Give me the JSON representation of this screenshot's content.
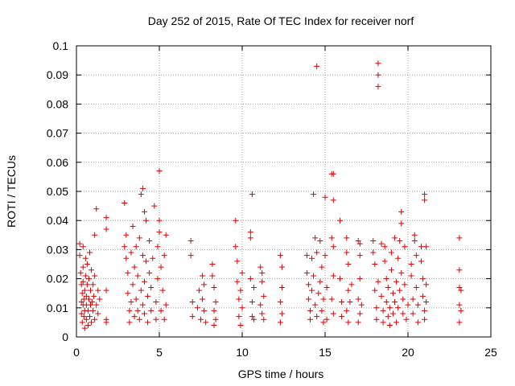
{
  "chart_data": {
    "type": "scatter",
    "title": "Day 252 of 2015, Rate Of TEC Index for receiver norf",
    "xlabel": "GPS time / hours",
    "ylabel": "ROTI / TECUs",
    "xlim": [
      0,
      25
    ],
    "ylim": [
      0,
      0.1
    ],
    "xticks": [
      "0",
      "5",
      "10",
      "15",
      "20",
      "25"
    ],
    "yticks": [
      "0",
      "0.01",
      "0.02",
      "0.03",
      "0.04",
      "0.05",
      "0.06",
      "0.07",
      "0.08",
      "0.09",
      "0.1"
    ],
    "grid": true,
    "marker": "plus",
    "color": "#e00000",
    "series": [
      {
        "points": [
          [
            0.2,
            0.032
          ],
          [
            0.2,
            0.028
          ],
          [
            0.25,
            0.022
          ],
          [
            0.3,
            0.018
          ],
          [
            0.3,
            0.012
          ],
          [
            0.3,
            0.008
          ],
          [
            0.35,
            0.015
          ],
          [
            0.35,
            0.005
          ],
          [
            0.4,
            0.031
          ],
          [
            0.4,
            0.024
          ],
          [
            0.4,
            0.019
          ],
          [
            0.4,
            0.011
          ],
          [
            0.45,
            0.007
          ],
          [
            0.45,
            0.013
          ],
          [
            0.5,
            0.009
          ],
          [
            0.5,
            0.016
          ],
          [
            0.5,
            0.003
          ],
          [
            0.55,
            0.021
          ],
          [
            0.55,
            0.027
          ],
          [
            0.6,
            0.011
          ],
          [
            0.6,
            0.006
          ],
          [
            0.6,
            0.014
          ],
          [
            0.65,
            0.018
          ],
          [
            0.65,
            0.025
          ],
          [
            0.7,
            0.009
          ],
          [
            0.7,
            0.004
          ],
          [
            0.75,
            0.013
          ],
          [
            0.75,
            0.02
          ],
          [
            0.8,
            0.029
          ],
          [
            0.8,
            0.007
          ],
          [
            0.85,
            0.016
          ],
          [
            0.85,
            0.011
          ],
          [
            0.9,
            0.023
          ],
          [
            0.9,
            0.005
          ],
          [
            0.95,
            0.012
          ],
          [
            1.0,
            0.018
          ],
          [
            1.0,
            0.009
          ],
          [
            1.05,
            0.014
          ],
          [
            1.1,
            0.021
          ],
          [
            1.1,
            0.006
          ],
          [
            1.1,
            0.035
          ],
          [
            1.2,
            0.044
          ],
          [
            1.2,
            0.011
          ],
          [
            1.3,
            0.016
          ],
          [
            1.3,
            0.008
          ],
          [
            1.4,
            0.013
          ],
          [
            1.8,
            0.041
          ],
          [
            1.8,
            0.037
          ],
          [
            1.8,
            0.016
          ],
          [
            1.8,
            0.006
          ],
          [
            1.8,
            0.005
          ],
          [
            2.9,
            0.046
          ],
          [
            2.9,
            0.031
          ],
          [
            3.0,
            0.035
          ],
          [
            3.0,
            0.027
          ],
          [
            3.1,
            0.022
          ],
          [
            3.1,
            0.015
          ],
          [
            3.2,
            0.009
          ],
          [
            3.2,
            0.005
          ],
          [
            3.3,
            0.029
          ],
          [
            3.3,
            0.012
          ],
          [
            3.4,
            0.038
          ],
          [
            3.4,
            0.018
          ],
          [
            3.5,
            0.007
          ],
          [
            3.5,
            0.024
          ],
          [
            3.6,
            0.031
          ],
          [
            3.6,
            0.013
          ],
          [
            3.7,
            0.009
          ],
          [
            3.7,
            0.021
          ],
          [
            3.8,
            0.034
          ],
          [
            3.8,
            0.006
          ],
          [
            3.9,
            0.049
          ],
          [
            3.9,
            0.016
          ],
          [
            4.0,
            0.051
          ],
          [
            4.0,
            0.028
          ],
          [
            4.0,
            0.011
          ],
          [
            4.1,
            0.043
          ],
          [
            4.1,
            0.019
          ],
          [
            4.1,
            0.008
          ],
          [
            4.2,
            0.04
          ],
          [
            4.2,
            0.026
          ],
          [
            4.3,
            0.014
          ],
          [
            4.3,
            0.005
          ],
          [
            4.4,
            0.033
          ],
          [
            4.4,
            0.022
          ],
          [
            4.5,
            0.017
          ],
          [
            4.5,
            0.009
          ],
          [
            4.6,
            0.027
          ],
          [
            4.7,
            0.045
          ],
          [
            4.8,
            0.012
          ],
          [
            4.8,
            0.006
          ],
          [
            4.9,
            0.031
          ],
          [
            4.9,
            0.02
          ],
          [
            5.0,
            0.057
          ],
          [
            5.0,
            0.04
          ],
          [
            5.0,
            0.036
          ],
          [
            5.1,
            0.024
          ],
          [
            5.1,
            0.009
          ],
          [
            5.2,
            0.016
          ],
          [
            5.3,
            0.028
          ],
          [
            5.3,
            0.006
          ],
          [
            5.4,
            0.035
          ],
          [
            5.4,
            0.011
          ],
          [
            6.9,
            0.033
          ],
          [
            6.9,
            0.028
          ],
          [
            7.0,
            0.012
          ],
          [
            7.0,
            0.007
          ],
          [
            7.3,
            0.01
          ],
          [
            7.4,
            0.016
          ],
          [
            7.5,
            0.006
          ],
          [
            7.6,
            0.021
          ],
          [
            7.6,
            0.013
          ],
          [
            7.7,
            0.018
          ],
          [
            7.7,
            0.009
          ],
          [
            7.8,
            0.005
          ],
          [
            8.2,
            0.025
          ],
          [
            8.2,
            0.021
          ],
          [
            8.3,
            0.017
          ],
          [
            8.3,
            0.009
          ],
          [
            8.3,
            0.004
          ],
          [
            8.4,
            0.012
          ],
          [
            8.4,
            0.006
          ],
          [
            9.6,
            0.04
          ],
          [
            9.6,
            0.031
          ],
          [
            9.7,
            0.026
          ],
          [
            9.7,
            0.019
          ],
          [
            9.8,
            0.013
          ],
          [
            9.8,
            0.007
          ],
          [
            9.9,
            0.004
          ],
          [
            9.9,
            0.016
          ],
          [
            10.0,
            0.022
          ],
          [
            10.0,
            0.01
          ],
          [
            10.5,
            0.036
          ],
          [
            10.5,
            0.034
          ],
          [
            10.6,
            0.049
          ],
          [
            10.5,
            0.02
          ],
          [
            10.6,
            0.012
          ],
          [
            10.6,
            0.007
          ],
          [
            10.7,
            0.017
          ],
          [
            10.7,
            0.006
          ],
          [
            11.1,
            0.024
          ],
          [
            11.2,
            0.022
          ],
          [
            11.2,
            0.019
          ],
          [
            11.3,
            0.014
          ],
          [
            11.1,
            0.011
          ],
          [
            11.2,
            0.008
          ],
          [
            11.3,
            0.006
          ],
          [
            12.3,
            0.028
          ],
          [
            12.4,
            0.024
          ],
          [
            12.4,
            0.017
          ],
          [
            12.3,
            0.012
          ],
          [
            12.4,
            0.008
          ],
          [
            12.3,
            0.005
          ],
          [
            13.9,
            0.028
          ],
          [
            13.9,
            0.022
          ],
          [
            14.0,
            0.018
          ],
          [
            14.0,
            0.013
          ],
          [
            14.1,
            0.009
          ],
          [
            14.1,
            0.006
          ],
          [
            14.2,
            0.027
          ],
          [
            14.2,
            0.016
          ],
          [
            14.3,
            0.049
          ],
          [
            14.3,
            0.021
          ],
          [
            14.4,
            0.034
          ],
          [
            14.4,
            0.011
          ],
          [
            14.5,
            0.093
          ],
          [
            14.5,
            0.029
          ],
          [
            14.5,
            0.007
          ],
          [
            14.6,
            0.015
          ],
          [
            14.7,
            0.033
          ],
          [
            14.7,
            0.019
          ],
          [
            14.8,
            0.024
          ],
          [
            14.8,
            0.009
          ],
          [
            14.9,
            0.013
          ],
          [
            14.9,
            0.005
          ],
          [
            15.0,
            0.048
          ],
          [
            15.0,
            0.028
          ],
          [
            15.1,
            0.017
          ],
          [
            15.1,
            0.006
          ],
          [
            15.4,
            0.056
          ],
          [
            15.5,
            0.056
          ],
          [
            15.5,
            0.047
          ],
          [
            15.4,
            0.034
          ],
          [
            15.5,
            0.031
          ],
          [
            15.5,
            0.021
          ],
          [
            15.4,
            0.013
          ],
          [
            15.5,
            0.008
          ],
          [
            15.9,
            0.04
          ],
          [
            15.9,
            0.02
          ],
          [
            16.0,
            0.012
          ],
          [
            16.0,
            0.007
          ],
          [
            16.3,
            0.034
          ],
          [
            16.3,
            0.029
          ],
          [
            16.4,
            0.025
          ],
          [
            16.4,
            0.016
          ],
          [
            16.3,
            0.009
          ],
          [
            16.4,
            0.005
          ],
          [
            16.5,
            0.012
          ],
          [
            16.6,
            0.018
          ],
          [
            17.0,
            0.033
          ],
          [
            17.1,
            0.032
          ],
          [
            17.1,
            0.028
          ],
          [
            17.1,
            0.02
          ],
          [
            17.0,
            0.013
          ],
          [
            17.1,
            0.008
          ],
          [
            17.0,
            0.005
          ],
          [
            17.2,
            0.011
          ],
          [
            17.9,
            0.033
          ],
          [
            17.9,
            0.029
          ],
          [
            18.0,
            0.025
          ],
          [
            18.0,
            0.016
          ],
          [
            18.1,
            0.01
          ],
          [
            18.1,
            0.006
          ],
          [
            18.2,
            0.094
          ],
          [
            18.2,
            0.09
          ],
          [
            18.2,
            0.086
          ],
          [
            18.2,
            0.019
          ],
          [
            18.4,
            0.032
          ],
          [
            18.4,
            0.014
          ],
          [
            18.5,
            0.009
          ],
          [
            18.5,
            0.005
          ],
          [
            18.6,
            0.031
          ],
          [
            18.6,
            0.026
          ],
          [
            18.7,
            0.02
          ],
          [
            18.7,
            0.012
          ],
          [
            18.8,
            0.007
          ],
          [
            18.8,
            0.017
          ],
          [
            18.9,
            0.004
          ],
          [
            18.9,
            0.01
          ],
          [
            19.0,
            0.029
          ],
          [
            19.0,
            0.023
          ],
          [
            19.1,
            0.015
          ],
          [
            19.1,
            0.008
          ],
          [
            19.2,
            0.034
          ],
          [
            19.2,
            0.012
          ],
          [
            19.3,
            0.019
          ],
          [
            19.3,
            0.005
          ],
          [
            19.4,
            0.027
          ],
          [
            19.4,
            0.01
          ],
          [
            19.5,
            0.033
          ],
          [
            19.5,
            0.016
          ],
          [
            19.6,
            0.043
          ],
          [
            19.6,
            0.039
          ],
          [
            19.6,
            0.022
          ],
          [
            19.7,
            0.008
          ],
          [
            19.7,
            0.013
          ],
          [
            19.8,
            0.031
          ],
          [
            19.8,
            0.018
          ],
          [
            19.9,
            0.006
          ],
          [
            20.0,
            0.011
          ],
          [
            20.2,
            0.025
          ],
          [
            20.2,
            0.021
          ],
          [
            20.3,
            0.013
          ],
          [
            20.3,
            0.008
          ],
          [
            20.4,
            0.035
          ],
          [
            20.4,
            0.033
          ],
          [
            20.5,
            0.028
          ],
          [
            20.5,
            0.017
          ],
          [
            20.6,
            0.011
          ],
          [
            20.6,
            0.005
          ],
          [
            20.8,
            0.031
          ],
          [
            20.8,
            0.026
          ],
          [
            20.9,
            0.02
          ],
          [
            20.9,
            0.014
          ],
          [
            21.0,
            0.049
          ],
          [
            21.0,
            0.047
          ],
          [
            21.1,
            0.031
          ],
          [
            21.0,
            0.009
          ],
          [
            21.1,
            0.018
          ],
          [
            21.1,
            0.012
          ],
          [
            21.0,
            0.006
          ],
          [
            23.1,
            0.034
          ],
          [
            23.1,
            0.023
          ],
          [
            23.1,
            0.017
          ],
          [
            23.2,
            0.016
          ],
          [
            23.1,
            0.011
          ],
          [
            23.2,
            0.009
          ],
          [
            23.1,
            0.005
          ]
        ]
      }
    ]
  }
}
